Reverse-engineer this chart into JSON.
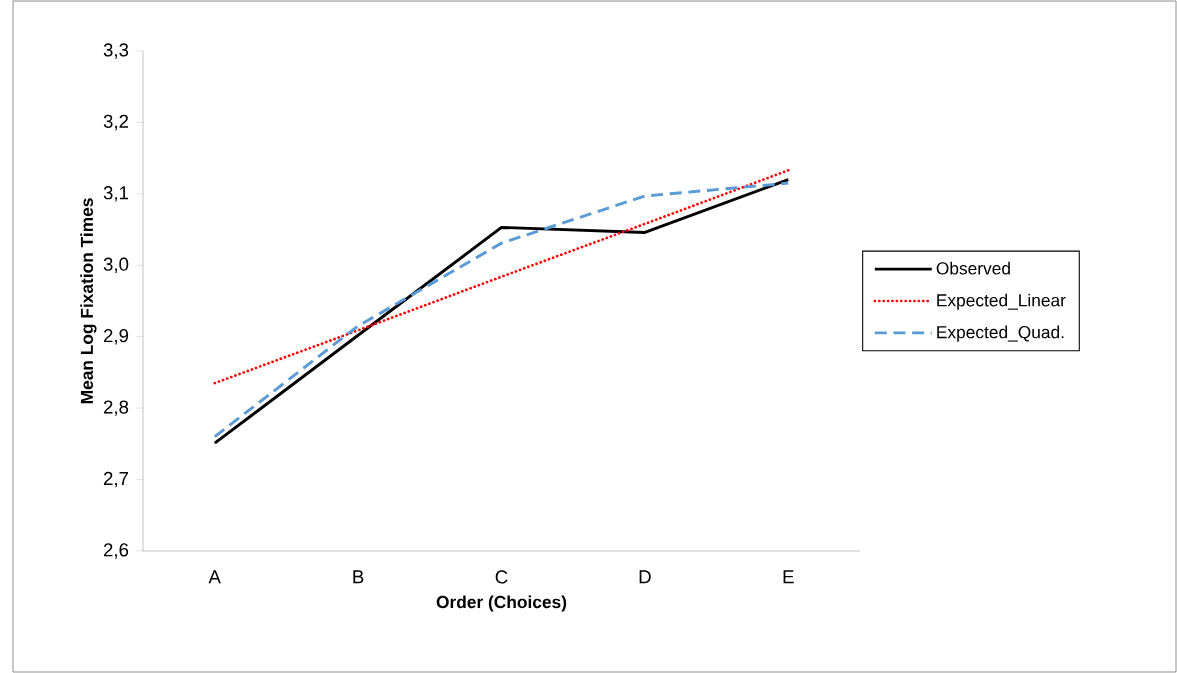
{
  "chart_data": {
    "type": "line",
    "xlabel": "Order (Choices)",
    "ylabel": "Mean Log Fixation Times",
    "categories": [
      "A",
      "B",
      "C",
      "D",
      "E"
    ],
    "series": [
      {
        "name": "Observed",
        "color": "#000000",
        "line_style": "solid",
        "values": [
          2.751,
          2.902,
          3.053,
          3.046,
          3.12
        ]
      },
      {
        "name": "Expected_Linear",
        "color": "#ff0000",
        "line_style": "dotted",
        "values": [
          2.835,
          2.909,
          2.984,
          3.058,
          3.133
        ]
      },
      {
        "name": "Expected_Quad.",
        "color": "#5b9bd5",
        "line_style": "dashed",
        "values": [
          2.76,
          2.915,
          3.031,
          3.097,
          3.115
        ]
      }
    ],
    "ylim": [
      2.6,
      3.3
    ],
    "yticks": [
      {
        "value": 2.6,
        "label": "2,6"
      },
      {
        "value": 2.7,
        "label": "2,7"
      },
      {
        "value": 2.8,
        "label": "2,8"
      },
      {
        "value": 2.9,
        "label": "2,9"
      },
      {
        "value": 3.0,
        "label": "3,0"
      },
      {
        "value": 3.1,
        "label": "3,1"
      },
      {
        "value": 3.2,
        "label": "3,2"
      },
      {
        "value": 3.3,
        "label": "3,3"
      }
    ],
    "grid": false,
    "legend": "right"
  }
}
